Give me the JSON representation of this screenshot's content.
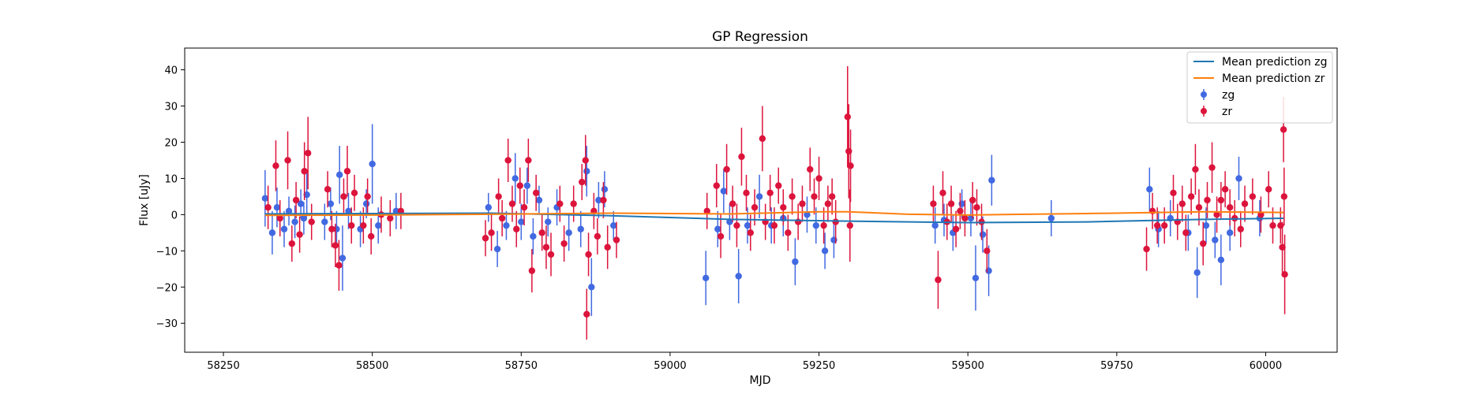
{
  "chart_data": {
    "type": "scatter",
    "title": "GP Regression",
    "xlabel": "MJD",
    "ylabel": "Flux [uJy]",
    "xlim": [
      58185,
      60120
    ],
    "ylim": [
      -38,
      46
    ],
    "xticks": [
      58250,
      58500,
      58750,
      59000,
      59250,
      59500,
      59750,
      60000
    ],
    "yticks": [
      -30,
      -20,
      -10,
      0,
      10,
      20,
      30,
      40
    ],
    "legend_position": "top-right",
    "legend": [
      "Mean prediction zg",
      "Mean prediction zr",
      "zg",
      "zr"
    ],
    "lines": [
      {
        "name": "Mean prediction zg",
        "color": "#1f77b4",
        "x": [
          58320,
          58500,
          58700,
          58900,
          59100,
          59300,
          59500,
          59700,
          59900,
          60030
        ],
        "y": [
          0.2,
          0.3,
          0.4,
          -0.3,
          -1.3,
          -1.8,
          -2.2,
          -2.0,
          -1.3,
          -1.0
        ]
      },
      {
        "name": "Mean prediction zr",
        "color": "#ff7f0e",
        "x": [
          58320,
          58500,
          58700,
          58900,
          59100,
          59250,
          59300,
          59400,
          59500,
          59700,
          59900,
          60030
        ],
        "y": [
          -0.2,
          -0.1,
          0.1,
          0.4,
          0.2,
          0.8,
          0.8,
          0.1,
          -0.1,
          0.3,
          0.8,
          0.6
        ]
      }
    ],
    "series": [
      {
        "name": "zg",
        "color": "#4169e1",
        "points": [
          [
            58320,
            4.5,
            7.8
          ],
          [
            58332,
            -5.0,
            6.0
          ],
          [
            58340,
            2.0,
            5.5
          ],
          [
            58352,
            -4.0,
            5.0
          ],
          [
            58360,
            1.0,
            4.0
          ],
          [
            58370,
            -2.0,
            4.5
          ],
          [
            58380,
            3.0,
            4.0
          ],
          [
            58385,
            -1.0,
            4.5
          ],
          [
            58390,
            5.5,
            6.0
          ],
          [
            58420,
            -2.0,
            5.0
          ],
          [
            58430,
            3.0,
            4.5
          ],
          [
            58440,
            -4.0,
            5.0
          ],
          [
            58445,
            11.0,
            8.0
          ],
          [
            58450,
            -12.0,
            9.0
          ],
          [
            58460,
            1.0,
            5.0
          ],
          [
            58480,
            -4.0,
            5.0
          ],
          [
            58490,
            3.0,
            4.0
          ],
          [
            58500,
            14.0,
            11.0
          ],
          [
            58510,
            -3.0,
            5.0
          ],
          [
            58540,
            1.0,
            5.0
          ],
          [
            58695,
            2.0,
            4.0
          ],
          [
            58710,
            -9.5,
            5.0
          ],
          [
            58725,
            -3.0,
            4.0
          ],
          [
            58740,
            10.0,
            7.0
          ],
          [
            58750,
            -2.0,
            5.0
          ],
          [
            58760,
            8.0,
            5.0
          ],
          [
            58770,
            -6.0,
            5.0
          ],
          [
            58780,
            4.0,
            4.0
          ],
          [
            58795,
            -2.0,
            4.0
          ],
          [
            58810,
            2.0,
            5.0
          ],
          [
            58830,
            -5.0,
            5.0
          ],
          [
            58850,
            -4.0,
            5.0
          ],
          [
            58860,
            12.0,
            7.0
          ],
          [
            58868,
            -20.0,
            8.0
          ],
          [
            58880,
            4.0,
            5.0
          ],
          [
            58890,
            7.0,
            5.0
          ],
          [
            58905,
            -3.0,
            4.0
          ],
          [
            59060,
            -17.5,
            7.5
          ],
          [
            59080,
            -4.0,
            5.0
          ],
          [
            59090,
            6.5,
            6.0
          ],
          [
            59100,
            -2.0,
            5.0
          ],
          [
            59115,
            -17.0,
            7.5
          ],
          [
            59130,
            -3.0,
            5.0
          ],
          [
            59150,
            5.0,
            6.0
          ],
          [
            59170,
            -3.0,
            5.0
          ],
          [
            59190,
            -1.0,
            5.0
          ],
          [
            59210,
            -13.0,
            6.5
          ],
          [
            59230,
            0.0,
            5.0
          ],
          [
            59245,
            -3.0,
            5.0
          ],
          [
            59260,
            -10.0,
            5.0
          ],
          [
            59275,
            -7.0,
            5.0
          ],
          [
            59445,
            -3.0,
            5.0
          ],
          [
            59460,
            -1.5,
            4.5
          ],
          [
            59475,
            -5.0,
            5.0
          ],
          [
            59490,
            3.0,
            4.0
          ],
          [
            59505,
            -1.0,
            5.0
          ],
          [
            59513,
            -17.5,
            9.0
          ],
          [
            59525,
            -5.5,
            5.0
          ],
          [
            59535,
            -15.5,
            7.0
          ],
          [
            59540,
            9.5,
            7.0
          ],
          [
            59640,
            -1.0,
            5.0
          ],
          [
            59805,
            7.0,
            6.0
          ],
          [
            59820,
            -4.0,
            5.0
          ],
          [
            59840,
            -1.0,
            5.0
          ],
          [
            59870,
            -5.0,
            5.0
          ],
          [
            59885,
            -16.0,
            7.0
          ],
          [
            59900,
            -3.0,
            5.0
          ],
          [
            59915,
            -7.0,
            5.0
          ],
          [
            59925,
            -12.5,
            7.0
          ],
          [
            59940,
            -5.0,
            5.0
          ],
          [
            59955,
            10.0,
            6.0
          ],
          [
            59990,
            -1.0,
            5.0
          ]
        ]
      },
      {
        "name": "zr",
        "color": "#dc143c",
        "points": [
          [
            58325,
            2.0,
            6.0
          ],
          [
            58338,
            13.5,
            7.0
          ],
          [
            58345,
            -1.0,
            5.0
          ],
          [
            58358,
            15.0,
            8.0
          ],
          [
            58365,
            -8.0,
            5.0
          ],
          [
            58372,
            4.0,
            5.0
          ],
          [
            58378,
            -5.5,
            5.0
          ],
          [
            58386,
            12.0,
            8.0
          ],
          [
            58392,
            17.0,
            10.0
          ],
          [
            58398,
            -2.0,
            5.0
          ],
          [
            58425,
            7.0,
            5.0
          ],
          [
            58432,
            -4.0,
            5.0
          ],
          [
            58438,
            -8.5,
            6.0
          ],
          [
            58444,
            -14.0,
            7.0
          ],
          [
            58452,
            5.0,
            5.0
          ],
          [
            58458,
            12.0,
            7.0
          ],
          [
            58465,
            -3.0,
            5.0
          ],
          [
            58470,
            6.0,
            5.0
          ],
          [
            58485,
            -3.0,
            5.0
          ],
          [
            58492,
            5.0,
            5.0
          ],
          [
            58498,
            -6.0,
            5.0
          ],
          [
            58515,
            0.0,
            5.0
          ],
          [
            58530,
            -1.0,
            5.0
          ],
          [
            58548,
            1.0,
            5.0
          ],
          [
            58690,
            -6.5,
            5.0
          ],
          [
            58700,
            -5.0,
            5.0
          ],
          [
            58712,
            5.0,
            5.0
          ],
          [
            58718,
            -1.0,
            5.0
          ],
          [
            58728,
            15.0,
            6.0
          ],
          [
            58735,
            3.0,
            5.0
          ],
          [
            58742,
            -4.0,
            5.0
          ],
          [
            58748,
            8.0,
            5.0
          ],
          [
            58755,
            2.0,
            5.0
          ],
          [
            58762,
            15.0,
            6.0
          ],
          [
            58768,
            -15.5,
            6.0
          ],
          [
            58775,
            6.0,
            5.0
          ],
          [
            58785,
            -5.0,
            5.0
          ],
          [
            58792,
            -9.0,
            6.0
          ],
          [
            58800,
            -11.0,
            6.0
          ],
          [
            58815,
            3.0,
            5.0
          ],
          [
            58822,
            -8.0,
            5.0
          ],
          [
            58838,
            3.0,
            5.0
          ],
          [
            58852,
            9.0,
            5.0
          ],
          [
            58858,
            15.0,
            7.0
          ],
          [
            58860,
            -27.5,
            7.0
          ],
          [
            58863,
            -11.0,
            6.0
          ],
          [
            58872,
            1.0,
            5.0
          ],
          [
            58878,
            -6.0,
            5.0
          ],
          [
            58888,
            4.0,
            5.0
          ],
          [
            58895,
            -9.0,
            6.0
          ],
          [
            58910,
            -7.0,
            5.0
          ],
          [
            59062,
            1.0,
            5.0
          ],
          [
            59078,
            8.0,
            6.0
          ],
          [
            59085,
            -6.0,
            6.0
          ],
          [
            59095,
            12.5,
            7.0
          ],
          [
            59105,
            3.0,
            5.0
          ],
          [
            59112,
            -3.0,
            6.0
          ],
          [
            59120,
            16.0,
            8.0
          ],
          [
            59128,
            6.0,
            5.0
          ],
          [
            59135,
            -5.0,
            5.0
          ],
          [
            59142,
            2.0,
            5.0
          ],
          [
            59155,
            21.0,
            9.0
          ],
          [
            59160,
            -2.0,
            5.0
          ],
          [
            59168,
            6.0,
            5.0
          ],
          [
            59175,
            -3.0,
            5.0
          ],
          [
            59182,
            8.0,
            5.0
          ],
          [
            59190,
            2.0,
            5.0
          ],
          [
            59198,
            -5.0,
            5.0
          ],
          [
            59205,
            5.0,
            5.0
          ],
          [
            59215,
            -2.0,
            5.0
          ],
          [
            59222,
            3.0,
            5.0
          ],
          [
            59235,
            12.5,
            6.0
          ],
          [
            59242,
            5.0,
            5.0
          ],
          [
            59250,
            10.0,
            6.0
          ],
          [
            59258,
            -3.0,
            5.0
          ],
          [
            59265,
            3.0,
            5.0
          ],
          [
            59272,
            5.0,
            5.0
          ],
          [
            59278,
            -2.0,
            6.0
          ],
          [
            59298,
            27.0,
            14.0
          ],
          [
            59300,
            17.5,
            13.0
          ],
          [
            59302,
            -3.0,
            10.0
          ],
          [
            59303,
            13.5,
            10.0
          ],
          [
            59442,
            3.0,
            5.0
          ],
          [
            59450,
            -18.0,
            8.0
          ],
          [
            59458,
            6.0,
            6.0
          ],
          [
            59465,
            -2.0,
            5.0
          ],
          [
            59472,
            3.0,
            5.0
          ],
          [
            59480,
            -4.0,
            5.0
          ],
          [
            59487,
            1.0,
            5.0
          ],
          [
            59495,
            -1.0,
            5.0
          ],
          [
            59508,
            4.0,
            5.0
          ],
          [
            59515,
            2.0,
            5.0
          ],
          [
            59523,
            -2.0,
            5.0
          ],
          [
            59532,
            -10.0,
            6.0
          ],
          [
            59800,
            -9.5,
            6.0
          ],
          [
            59810,
            1.0,
            5.0
          ],
          [
            59818,
            -3.0,
            5.0
          ],
          [
            59830,
            -3.0,
            5.0
          ],
          [
            59845,
            6.0,
            5.0
          ],
          [
            59852,
            -2.0,
            5.0
          ],
          [
            59860,
            3.0,
            5.0
          ],
          [
            59866,
            -5.0,
            5.0
          ],
          [
            59875,
            5.0,
            5.0
          ],
          [
            59882,
            12.5,
            7.0
          ],
          [
            59888,
            2.0,
            5.0
          ],
          [
            59895,
            -8.0,
            6.0
          ],
          [
            59902,
            4.0,
            5.0
          ],
          [
            59910,
            13.0,
            7.0
          ],
          [
            59918,
            0.0,
            5.0
          ],
          [
            59925,
            4.0,
            5.0
          ],
          [
            59932,
            7.0,
            5.0
          ],
          [
            59940,
            2.0,
            5.0
          ],
          [
            59948,
            -1.0,
            5.0
          ],
          [
            59958,
            -4.0,
            5.0
          ],
          [
            59965,
            3.0,
            5.0
          ],
          [
            59978,
            5.0,
            5.0
          ],
          [
            59992,
            0.0,
            5.0
          ],
          [
            60005,
            7.0,
            5.0
          ],
          [
            60012,
            -3.0,
            5.0
          ],
          [
            60025,
            -3.0,
            5.0
          ],
          [
            60028,
            -9.0,
            7.0
          ],
          [
            60030,
            23.5,
            9.0
          ],
          [
            60031,
            5.0,
            8.0
          ],
          [
            60032,
            -16.5,
            11.0
          ]
        ]
      }
    ]
  }
}
